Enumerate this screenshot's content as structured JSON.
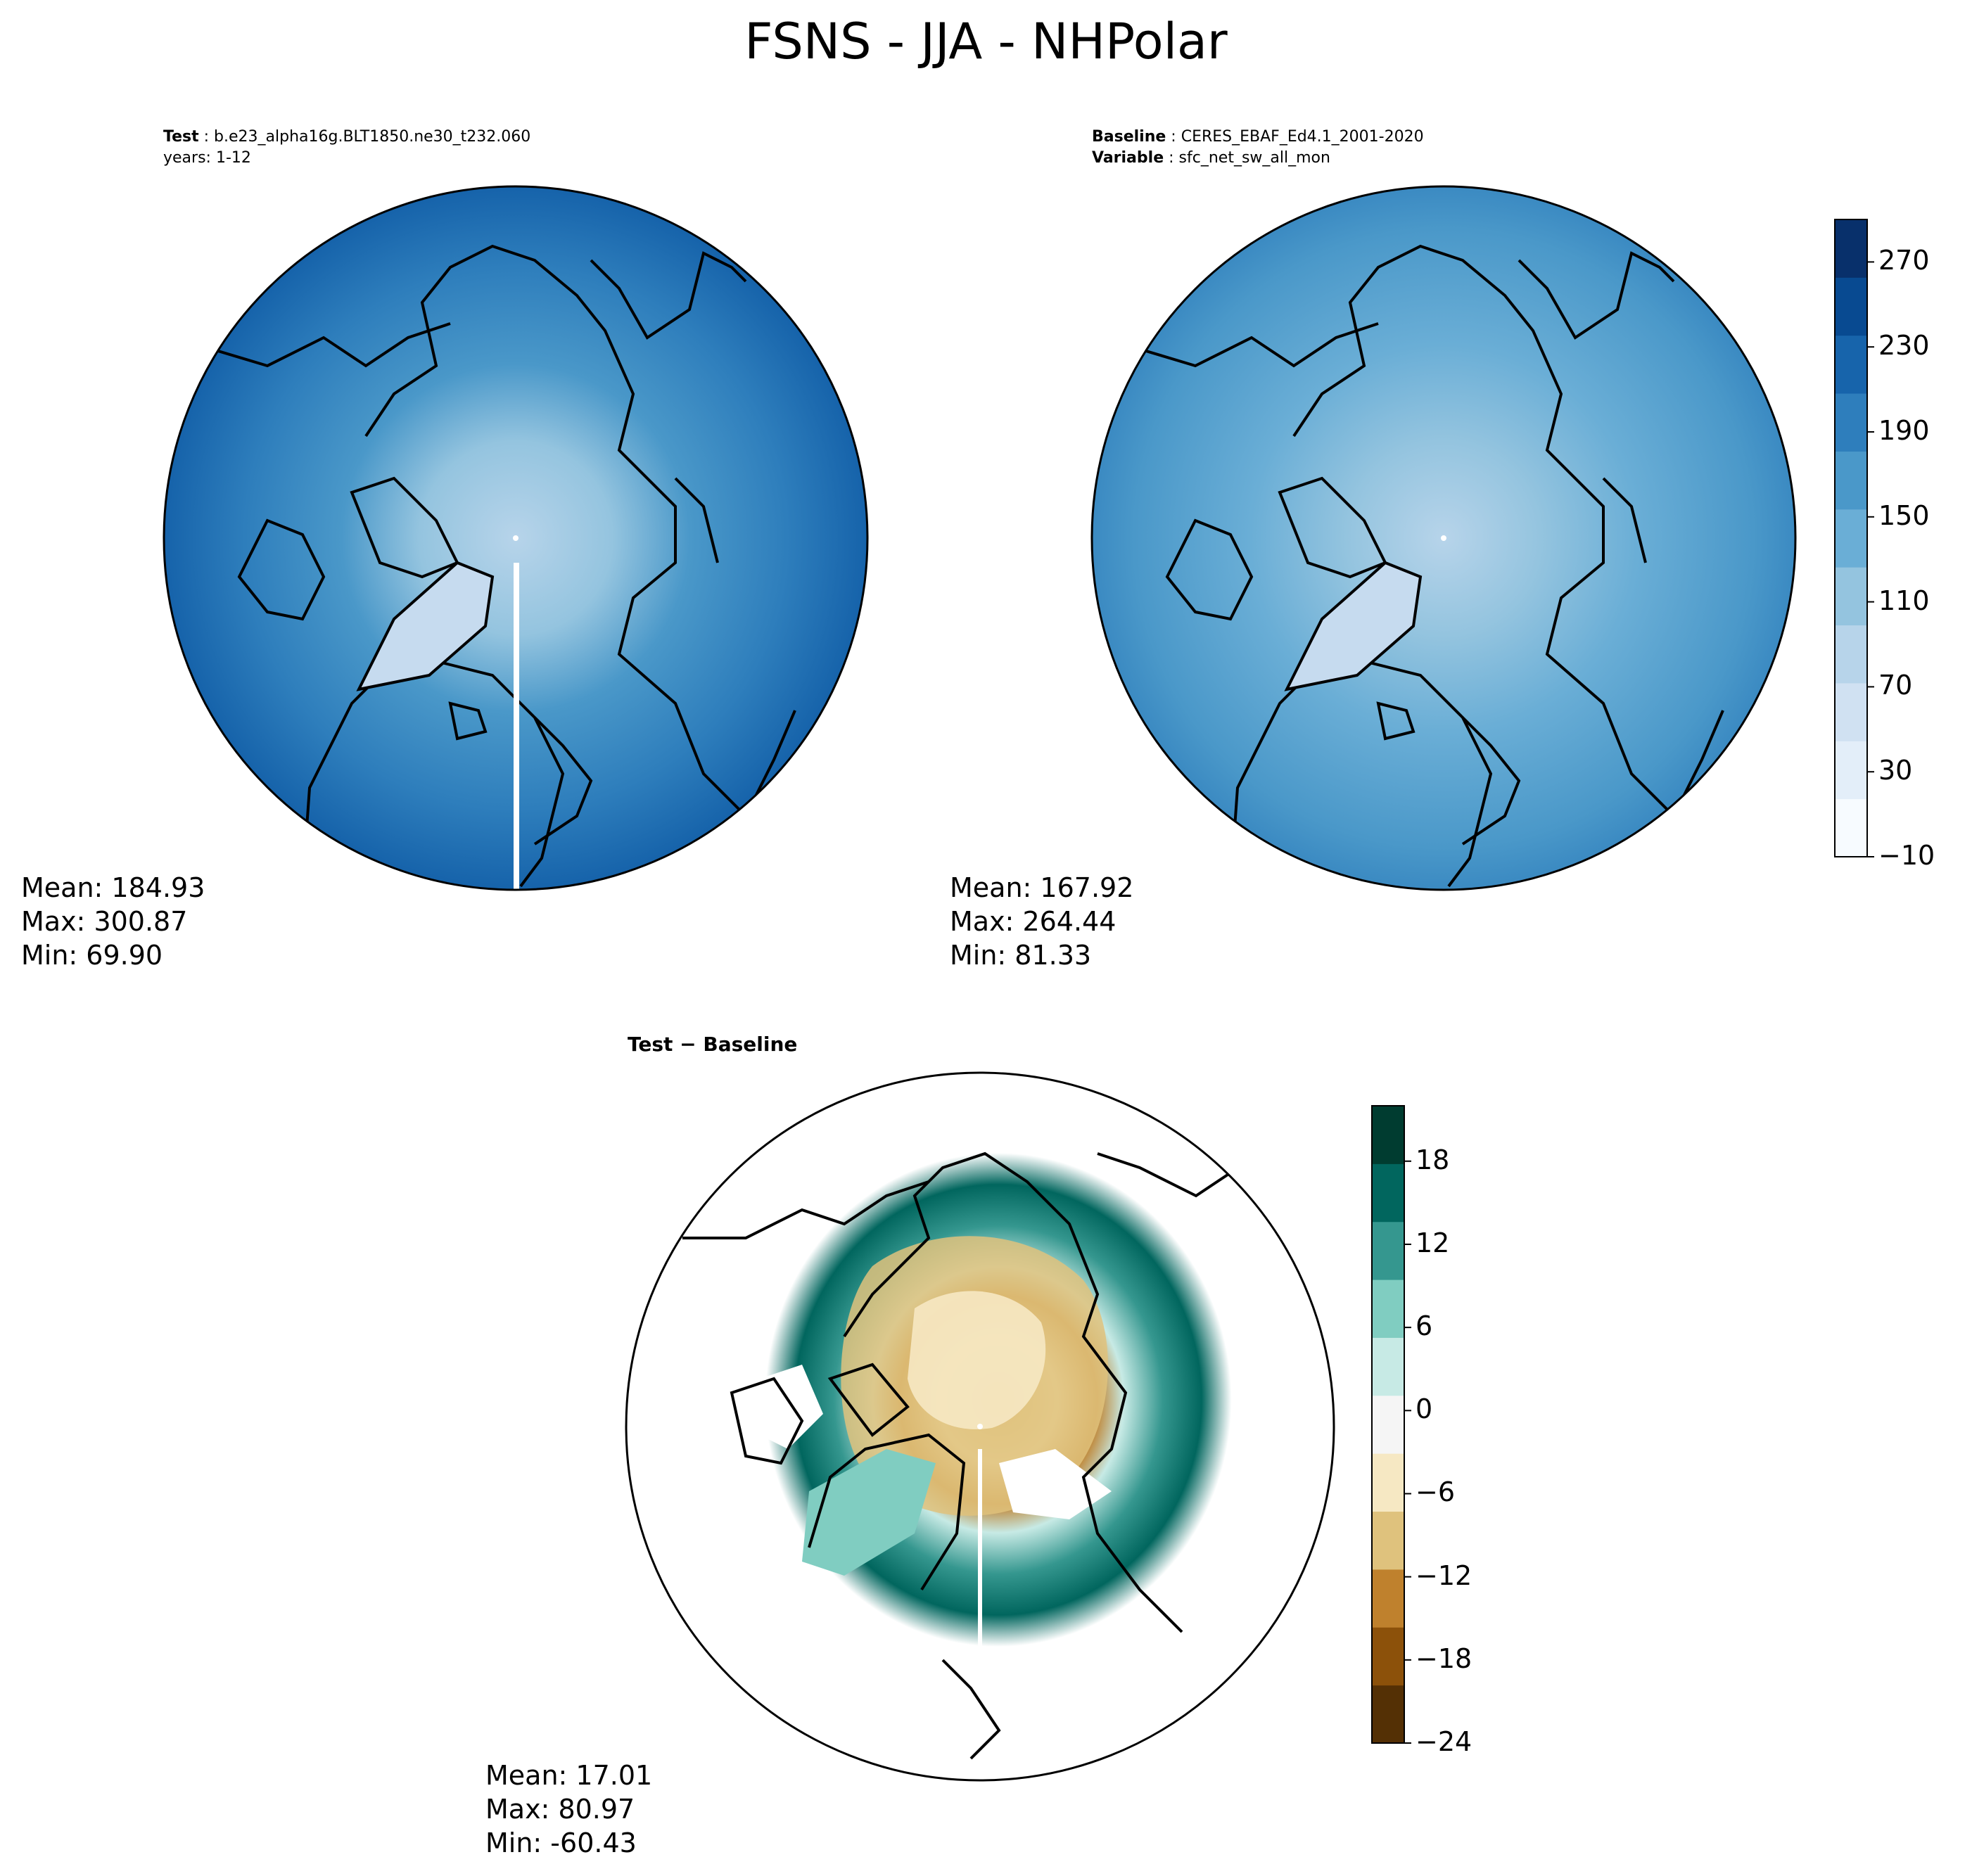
{
  "title": "FSNS - JJA - NHPolar",
  "panels": {
    "test": {
      "line1_label": "Test",
      "line1_value": "b.e23_alpha16g.BLT1850.ne30_t232.060",
      "line2": "years: 1-12",
      "mean": "Mean: 184.93",
      "max": "Max: 300.87",
      "min": "Min: 69.90"
    },
    "baseline": {
      "line1_label": "Baseline",
      "line1_value": "CERES_EBAF_Ed4.1_2001-2020",
      "line2_label": "Variable",
      "line2_value": "sfc_net_sw_all_mon",
      "mean": "Mean: 167.92",
      "max": "Max: 264.44",
      "min": "Min: 81.33"
    },
    "diff": {
      "title_left": "Test",
      "title_sep": "−",
      "title_right": "Baseline",
      "mean": "Mean: 17.01",
      "max": "Max: 80.97",
      "min": "Min: -60.43"
    }
  },
  "colorbars": {
    "main": {
      "ticks": [
        "270",
        "230",
        "190",
        "150",
        "110",
        "70",
        "30",
        "−10"
      ],
      "tick_values": [
        270,
        230,
        190,
        150,
        110,
        70,
        30,
        -10
      ],
      "range": [
        -10,
        290
      ],
      "colors": [
        "#f7fbff",
        "#e3eef9",
        "#d0e1f2",
        "#b7d4ea",
        "#94c4df",
        "#6aaed6",
        "#4a98c9",
        "#2e7ebc",
        "#1764ab",
        "#084a91",
        "#08306b"
      ]
    },
    "diff": {
      "ticks": [
        "18",
        "12",
        "6",
        "0",
        "−6",
        "−12",
        "−18",
        "−24"
      ],
      "tick_values": [
        18,
        12,
        6,
        0,
        -6,
        -12,
        -18,
        -24
      ],
      "range": [
        -24,
        22
      ],
      "colors": [
        "#543005",
        "#8c510a",
        "#bf812d",
        "#dfc27d",
        "#f6e8c3",
        "#f5f5f5",
        "#c7eae5",
        "#80cdc1",
        "#35978f",
        "#01665e",
        "#003c30"
      ]
    }
  }
}
